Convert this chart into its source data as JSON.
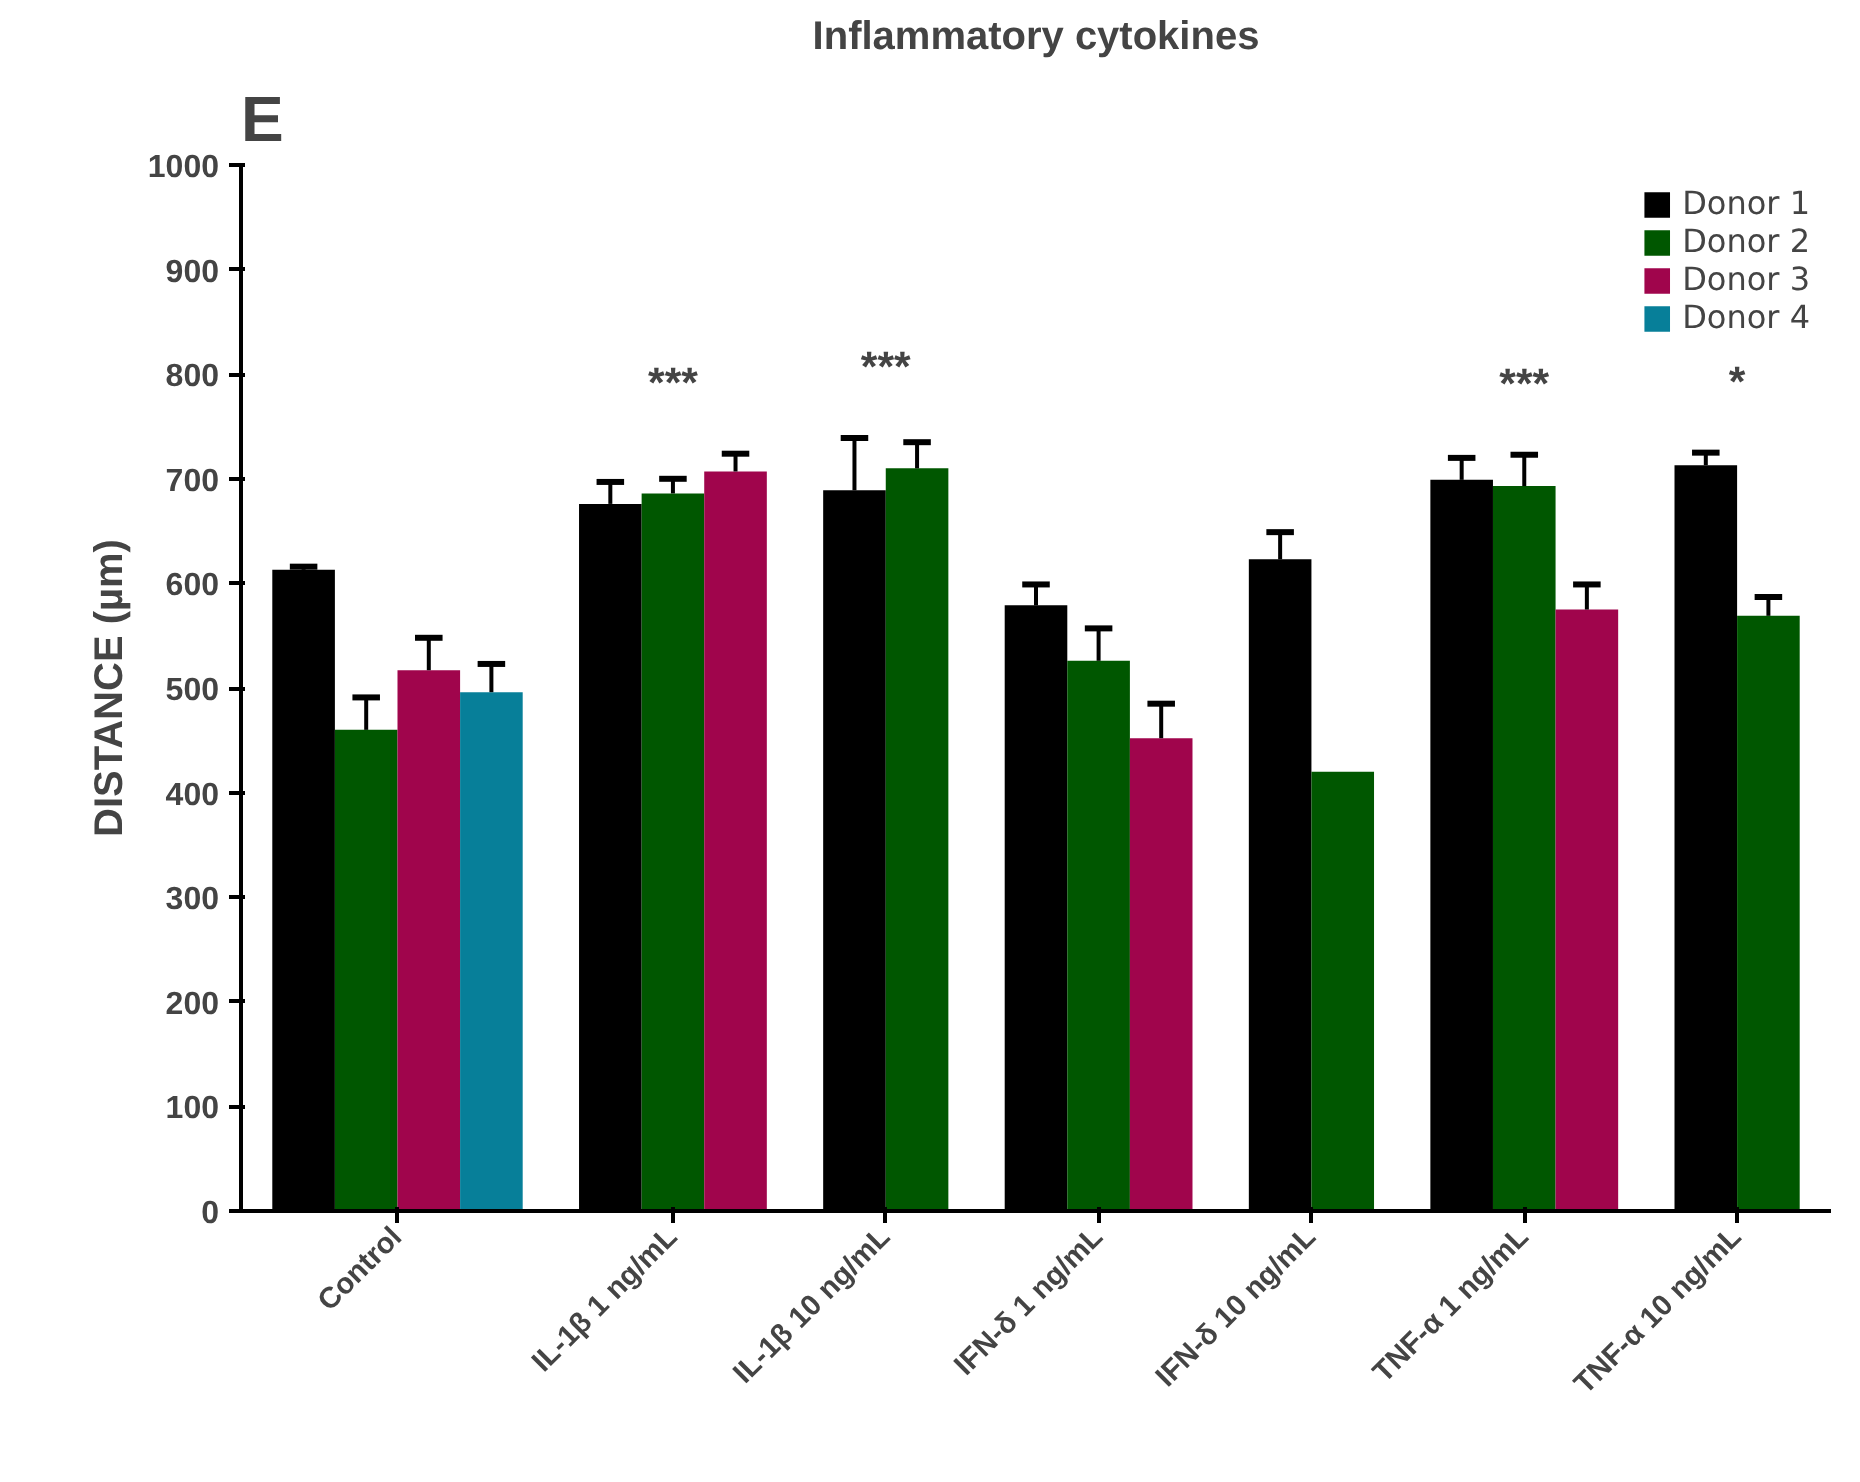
{
  "chart_data": {
    "type": "bar",
    "title": "Inflammatory cytokines",
    "ylabel": "DISTANCE (µm)",
    "categories": [
      "Control",
      "IL-1β 1 ng/mL",
      "IL-1β 10 ng/mL",
      "IFN-δ 1 ng/mL",
      "IFN-δ 10 ng/mL",
      "TNF-α 1 ng/mL",
      "TNF-α 10 ng/mL"
    ],
    "series": [
      {
        "name": "Donor 1",
        "color": "#000000",
        "values": [
          613,
          676,
          689,
          579,
          623,
          699,
          713
        ],
        "errors": [
          [
            613,
            616
          ],
          [
            676,
            697
          ],
          [
            689,
            739
          ],
          [
            579,
            599
          ],
          [
            623,
            649
          ],
          [
            699,
            720
          ],
          [
            713,
            725
          ]
        ]
      },
      {
        "name": "Donor 2",
        "color": "#005700",
        "values": [
          460,
          686,
          710,
          526,
          420,
          693,
          569
        ],
        "errors": [
          [
            460,
            491
          ],
          [
            686,
            700
          ],
          [
            710,
            735
          ],
          [
            526,
            557
          ],
          null,
          [
            693,
            723
          ],
          [
            569,
            587
          ]
        ]
      },
      {
        "name": "Donor 3",
        "color": "#a0054c",
        "values": [
          517,
          707,
          null,
          452,
          null,
          575,
          null
        ],
        "errors": [
          [
            517,
            548
          ],
          [
            707,
            724
          ],
          null,
          [
            452,
            485
          ],
          null,
          [
            575,
            599
          ],
          null
        ]
      },
      {
        "name": "Donor 4",
        "color": "#077f99",
        "values": [
          496,
          null,
          null,
          null,
          null,
          null,
          null
        ],
        "errors": [
          [
            496,
            523
          ],
          null,
          null,
          null,
          null,
          null,
          null
        ]
      }
    ],
    "ylim": [
      0,
      1000
    ],
    "yticks": [
      0,
      100,
      200,
      300,
      400,
      500,
      600,
      700,
      800,
      900,
      1000
    ],
    "grid": false,
    "legend": "top right",
    "annotations": [
      "E",
      "***",
      "***",
      "***",
      "*"
    ]
  }
}
